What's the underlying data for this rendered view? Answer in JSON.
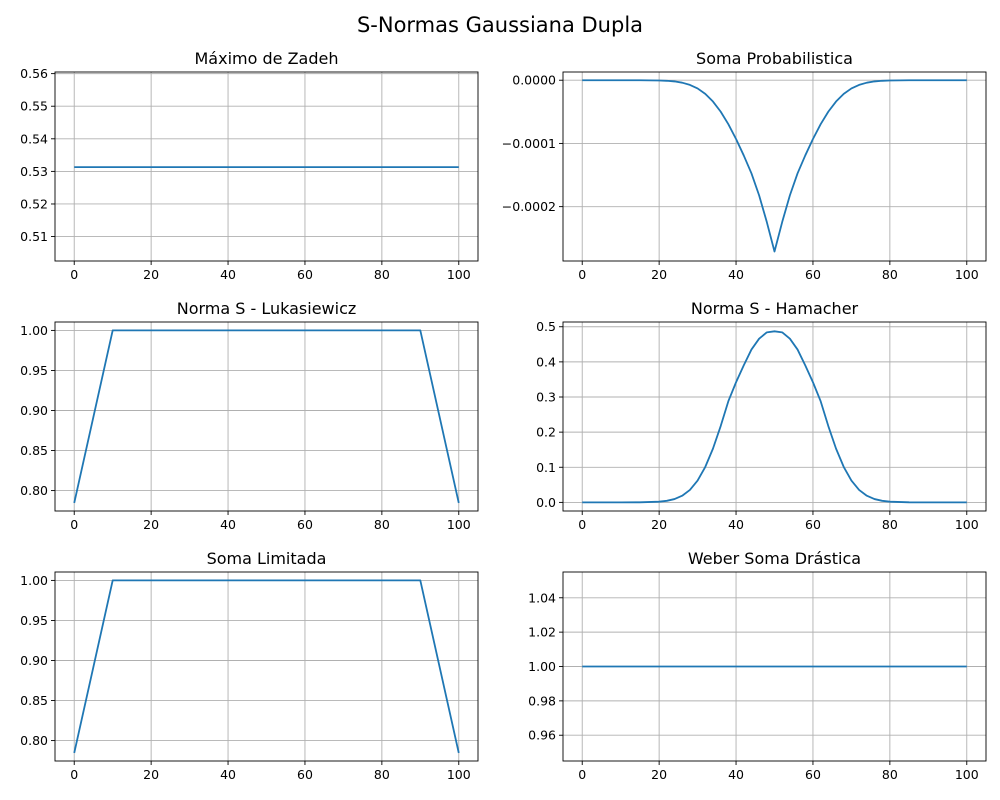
{
  "figure": {
    "title": "S-Normas Gaussiana Dupla"
  },
  "colors": {
    "series": "#1f77b4",
    "grid": "#b0b0b0",
    "axis": "#000000"
  },
  "chart_data": [
    {
      "type": "line",
      "title": "Máximo de Zadeh",
      "xlim": [
        -5,
        105
      ],
      "ylim": [
        0.5025,
        0.5605
      ],
      "xticks": [
        0,
        20,
        40,
        60,
        80,
        100
      ],
      "xtick_labels": [
        "0",
        "20",
        "40",
        "60",
        "80",
        "100"
      ],
      "yticks": [
        0.51,
        0.52,
        0.53,
        0.54,
        0.55,
        0.56
      ],
      "ytick_labels": [
        "0.51",
        "0.52",
        "0.53",
        "0.54",
        "0.55",
        "0.56"
      ],
      "grid": true,
      "series": [
        {
          "x": [
            0,
            100
          ],
          "y": [
            0.5313,
            0.5313
          ]
        }
      ]
    },
    {
      "type": "line",
      "title": "Soma Probabilistica",
      "xlim": [
        -5,
        105
      ],
      "ylim": [
        -0.000286,
        1.3e-05
      ],
      "xticks": [
        0,
        20,
        40,
        60,
        80,
        100
      ],
      "xtick_labels": [
        "0",
        "20",
        "40",
        "60",
        "80",
        "100"
      ],
      "yticks": [
        0.0,
        -0.0001,
        -0.0002
      ],
      "ytick_labels": [
        "0.0000",
        "−0.0001",
        "−0.0002"
      ],
      "grid": true,
      "series": [
        {
          "x": [
            0,
            5,
            10,
            15,
            20,
            22,
            24,
            26,
            28,
            30,
            32,
            34,
            36,
            38,
            40,
            42,
            44,
            46,
            48,
            50,
            52,
            54,
            56,
            58,
            60,
            62,
            64,
            66,
            68,
            70,
            72,
            74,
            76,
            78,
            80,
            85,
            90,
            95,
            100
          ],
          "y": [
            0,
            0,
            0,
            -1e-07,
            -4e-07,
            -9e-07,
            -1.9e-06,
            -3.9e-06,
            -7.4e-06,
            -1.3e-05,
            -2.16e-05,
            -3.37e-05,
            -4.97e-05,
            -6.96e-05,
            -9.3e-05,
            -0.000119,
            -0.0001473,
            -0.0001822,
            -0.0002244,
            -0.000271,
            -0.0002244,
            -0.0001822,
            -0.0001473,
            -0.000119,
            -9.3e-05,
            -6.96e-05,
            -4.97e-05,
            -3.37e-05,
            -2.16e-05,
            -1.3e-05,
            -7.4e-06,
            -3.9e-06,
            -1.9e-06,
            -9e-07,
            -4e-07,
            -1e-07,
            0,
            0,
            0
          ]
        }
      ]
    },
    {
      "type": "line",
      "title": "Norma S - Lukasiewicz",
      "xlim": [
        -5,
        105
      ],
      "ylim": [
        0.7745,
        1.0105
      ],
      "xticks": [
        0,
        20,
        40,
        60,
        80,
        100
      ],
      "xtick_labels": [
        "0",
        "20",
        "40",
        "60",
        "80",
        "100"
      ],
      "yticks": [
        0.8,
        0.85,
        0.9,
        0.95,
        1.0
      ],
      "ytick_labels": [
        "0.80",
        "0.85",
        "0.90",
        "0.95",
        "1.00"
      ],
      "grid": true,
      "series": [
        {
          "x": [
            0,
            10,
            90,
            100
          ],
          "y": [
            0.7845,
            1.0,
            1.0,
            0.7845
          ]
        }
      ]
    },
    {
      "type": "line",
      "title": "Norma S - Hamacher",
      "xlim": [
        -5,
        105
      ],
      "ylim": [
        -0.0245,
        0.5135
      ],
      "xticks": [
        0,
        20,
        40,
        60,
        80,
        100
      ],
      "xtick_labels": [
        "0",
        "20",
        "40",
        "60",
        "80",
        "100"
      ],
      "yticks": [
        0.0,
        0.1,
        0.2,
        0.3,
        0.4,
        0.5
      ],
      "ytick_labels": [
        "0.0",
        "0.1",
        "0.2",
        "0.3",
        "0.4",
        "0.5"
      ],
      "grid": true,
      "series": [
        {
          "x": [
            0,
            5,
            10,
            15,
            20,
            22,
            24,
            26,
            28,
            30,
            32,
            34,
            36,
            38,
            40,
            42,
            44,
            46,
            48,
            50,
            52,
            54,
            56,
            58,
            60,
            62,
            64,
            66,
            68,
            70,
            72,
            74,
            76,
            78,
            80,
            85,
            90,
            95,
            100
          ],
          "y": [
            0,
            0,
            0,
            0.0003,
            0.002,
            0.0045,
            0.0095,
            0.019,
            0.0355,
            0.062,
            0.101,
            0.153,
            0.217,
            0.288,
            0.342,
            0.39,
            0.435,
            0.466,
            0.484,
            0.487,
            0.484,
            0.466,
            0.435,
            0.39,
            0.342,
            0.288,
            0.217,
            0.153,
            0.101,
            0.062,
            0.0355,
            0.019,
            0.0095,
            0.0045,
            0.002,
            0.0003,
            0,
            0,
            0
          ]
        }
      ]
    },
    {
      "type": "line",
      "title": "Soma Limitada",
      "xlim": [
        -5,
        105
      ],
      "ylim": [
        0.7745,
        1.0105
      ],
      "xticks": [
        0,
        20,
        40,
        60,
        80,
        100
      ],
      "xtick_labels": [
        "0",
        "20",
        "40",
        "60",
        "80",
        "100"
      ],
      "yticks": [
        0.8,
        0.85,
        0.9,
        0.95,
        1.0
      ],
      "ytick_labels": [
        "0.80",
        "0.85",
        "0.90",
        "0.95",
        "1.00"
      ],
      "grid": true,
      "series": [
        {
          "x": [
            0,
            10,
            90,
            100
          ],
          "y": [
            0.7845,
            1.0,
            1.0,
            0.7845
          ]
        }
      ]
    },
    {
      "type": "line",
      "title": "Weber Soma Drástica",
      "xlim": [
        -5,
        105
      ],
      "ylim": [
        0.945,
        1.055
      ],
      "xticks": [
        0,
        20,
        40,
        60,
        80,
        100
      ],
      "xtick_labels": [
        "0",
        "20",
        "40",
        "60",
        "80",
        "100"
      ],
      "yticks": [
        0.96,
        0.98,
        1.0,
        1.02,
        1.04
      ],
      "ytick_labels": [
        "0.96",
        "0.98",
        "1.00",
        "1.02",
        "1.04"
      ],
      "grid": true,
      "series": [
        {
          "x": [
            0,
            100
          ],
          "y": [
            1.0,
            1.0
          ]
        }
      ]
    }
  ]
}
